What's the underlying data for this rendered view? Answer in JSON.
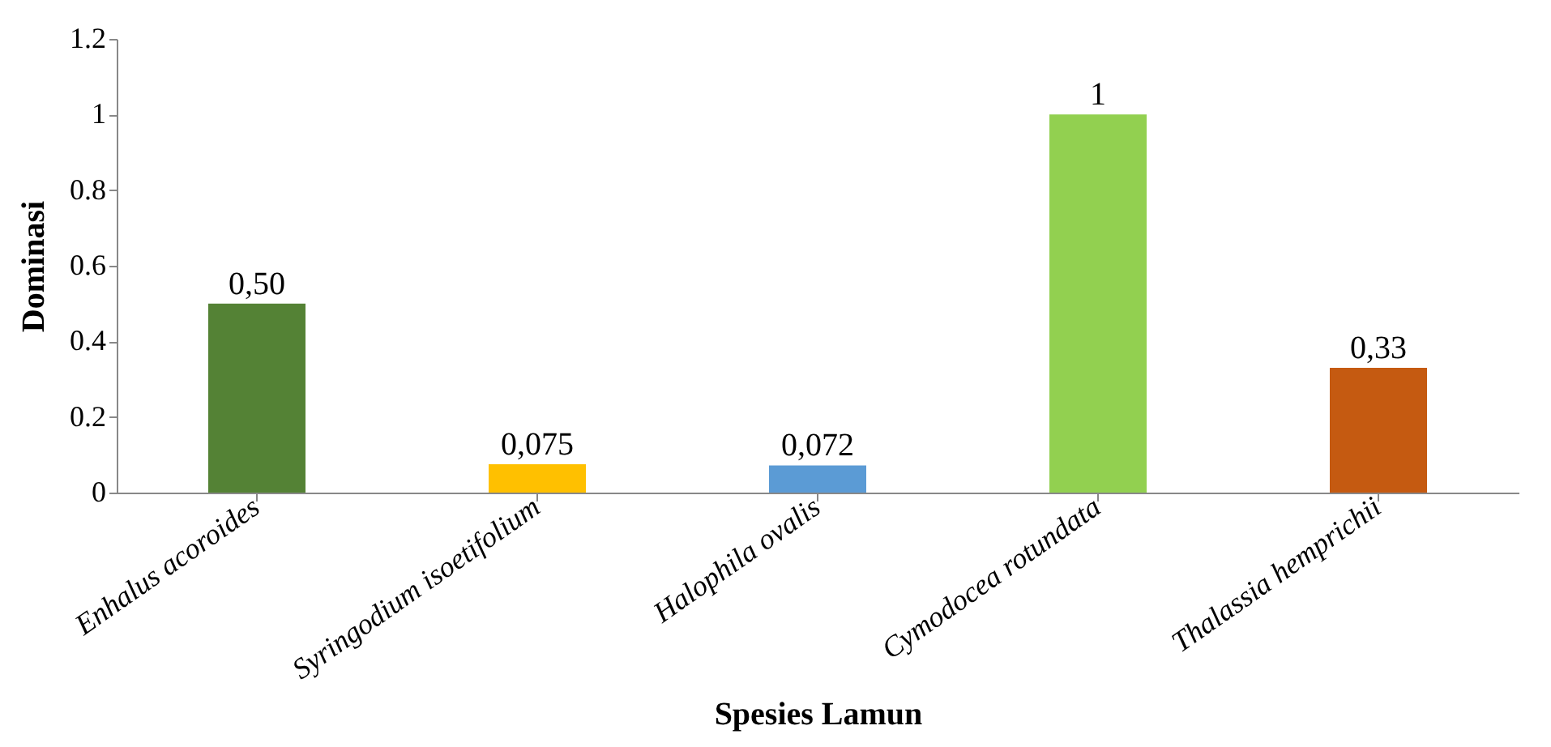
{
  "chart_data": {
    "type": "bar",
    "xlabel": "Spesies Lamun",
    "ylabel": "Dominasi",
    "categories": [
      "Enhalus acoroides",
      "Syringodium isoetifolium",
      "Halophila ovalis",
      "Cymodocea rotundata",
      "Thalassia hemprichii"
    ],
    "values": [
      0.5,
      0.075,
      0.072,
      1,
      0.33
    ],
    "colors": [
      "#548235",
      "#ffc000",
      "#5b9bd5",
      "#92d050",
      "#c55a11"
    ],
    "value_labels": [
      "0,50",
      "0,075",
      "0,072",
      "1",
      "0,33"
    ],
    "ylim": [
      0,
      1.2
    ],
    "yticks": [
      0,
      0.2,
      0.4,
      0.6,
      0.8,
      1,
      1.2
    ],
    "grid": false,
    "legend": false
  }
}
